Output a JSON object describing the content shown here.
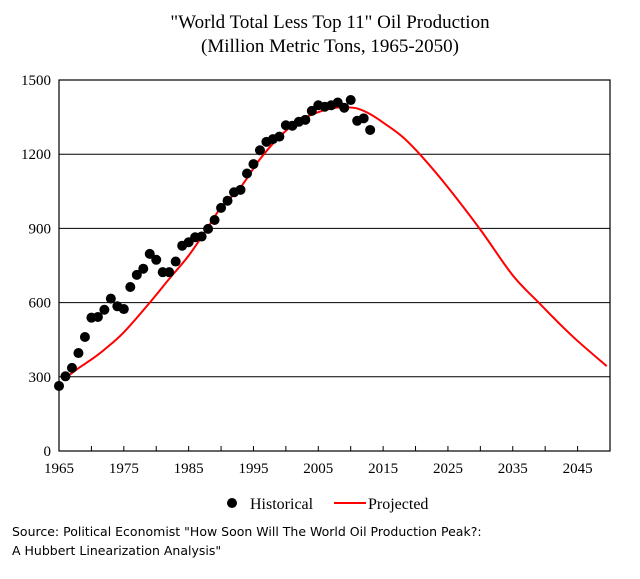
{
  "chart_data": {
    "type": "scatter",
    "title": "\"World Total Less Top 11\" Oil Production",
    "subtitle": "(Million  Metric Tons, 1965-2050)",
    "xlabel": "",
    "ylabel": "",
    "xlim": [
      1965,
      2050
    ],
    "ylim": [
      0,
      1500
    ],
    "grid": true,
    "x_ticks": [
      1965,
      1970,
      1975,
      1980,
      1985,
      1990,
      1995,
      2000,
      2005,
      2010,
      2015,
      2020,
      2025,
      2030,
      2035,
      2040,
      2045,
      2050
    ],
    "x_tick_labels": [
      "1965",
      "1975",
      "1985",
      "1995",
      "2005",
      "2015",
      "2025",
      "2035",
      "2045"
    ],
    "x_tick_label_values": [
      1965,
      1975,
      1985,
      1995,
      2005,
      2015,
      2025,
      2035,
      2045
    ],
    "y_ticks": [
      0,
      300,
      600,
      900,
      1200,
      1500
    ],
    "y_tick_labels": [
      "0",
      "300",
      "600",
      "900",
      "1200",
      "1500"
    ],
    "legend_position": "bottom",
    "series": [
      {
        "name": "Historical",
        "kind": "scatter",
        "color": "#000000",
        "x": [
          1965,
          1966,
          1967,
          1968,
          1969,
          1970,
          1971,
          1972,
          1973,
          1974,
          1975,
          1976,
          1977,
          1978,
          1979,
          1980,
          1981,
          1982,
          1983,
          1984,
          1985,
          1986,
          1987,
          1988,
          1989,
          1990,
          1991,
          1992,
          1993,
          1994,
          1995,
          1996,
          1997,
          1998,
          1999,
          2000,
          2001,
          2002,
          2003,
          2004,
          2005,
          2006,
          2007,
          2008,
          2009,
          2010,
          2011,
          2012,
          2013
        ],
        "y": [
          263,
          302,
          336,
          396,
          461,
          539,
          542,
          571,
          616,
          585,
          574,
          663,
          712,
          737,
          797,
          773,
          723,
          723,
          766,
          830,
          844,
          864,
          867,
          898,
          934,
          983,
          1012,
          1046,
          1056,
          1122,
          1160,
          1216,
          1250,
          1261,
          1271,
          1317,
          1315,
          1331,
          1339,
          1375,
          1398,
          1392,
          1398,
          1409,
          1388,
          1419,
          1335,
          1345,
          1298
        ]
      },
      {
        "name": "Projected",
        "kind": "line",
        "color": "#ff0000",
        "x": [
          1966.7,
          1968,
          1970,
          1972,
          1975,
          1979,
          1982,
          1985,
          1988,
          1990,
          1993,
          1996,
          1999,
          2002,
          2005,
          2007,
          2009,
          2011,
          2013,
          2015,
          2018,
          2021,
          2025,
          2030,
          2035,
          2039,
          2042,
          2045,
          2049.5
        ],
        "y": [
          309,
          335,
          370,
          410,
          480,
          600,
          696,
          790,
          905,
          985,
          1066,
          1180,
          1270,
          1335,
          1370,
          1385,
          1390,
          1385,
          1362,
          1328,
          1270,
          1190,
          1066,
          895,
          710,
          600,
          520,
          445,
          343
        ]
      }
    ]
  },
  "legend": {
    "items": [
      {
        "label": "Historical"
      },
      {
        "label": "Projected"
      }
    ]
  },
  "source": {
    "line1": "Source: Political Economist \"How Soon Will The World Oil Production Peak?:",
    "line2": "A Hubbert Linearization Analysis\""
  }
}
